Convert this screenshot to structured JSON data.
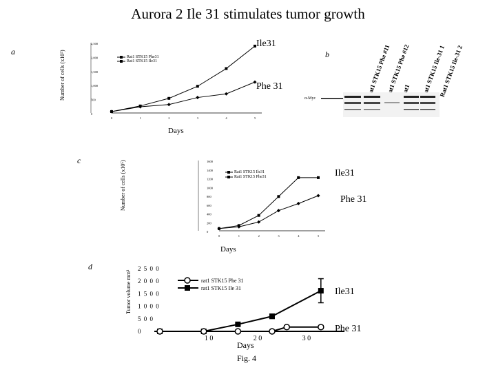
{
  "title": "Aurora 2 Ile 31 stimulates tumor growth",
  "figure_label": "Fig. 4",
  "panels": {
    "a": {
      "letter": "a",
      "ylabel": "Number of cells (x10⁵)",
      "xlabel": "Days",
      "annot_top": "Ile31",
      "annot_bottom": "Phe 31",
      "legend": [
        "Rat1 STK15 Phe31",
        "Rat1 STK15 Ile31"
      ]
    },
    "b": {
      "letter": "b",
      "probe": "α-Myc",
      "lanes": [
        "Rat1 STK15 Phe #11",
        "Rat1 STK15 Phe #12",
        "Rat1",
        "Rat1 STK15 Ile-31 1",
        "Rat1 STK15 Ile-31 2"
      ]
    },
    "c": {
      "letter": "c",
      "ylabel": "Number of cells (x10⁵)",
      "xlabel": "Days",
      "annot_top": "Ile31",
      "annot_bottom": "Phe 31",
      "legend": [
        "Rat1 STK15 Ile31",
        "Rat1 STK15 Phe31"
      ]
    },
    "d": {
      "letter": "d",
      "ylabel": "Tumor volume mm³",
      "xlabel": "Days",
      "annot_top": "Ile31",
      "annot_bottom": "Phe 31",
      "legend": [
        "rat1 STK15 Phe 31",
        "rat1 STK15 Ile 31"
      ]
    }
  },
  "chart_data": [
    {
      "id": "a",
      "type": "line",
      "title": "",
      "xlabel": "Days",
      "ylabel": "Number of cells (x10⁵)",
      "x": [
        0,
        1,
        2,
        3,
        4,
        5
      ],
      "xlim": [
        0,
        5
      ],
      "ylim": [
        0,
        2500
      ],
      "yticks": [
        0,
        500,
        1000,
        1500,
        2000,
        2500
      ],
      "ytick_labels": [
        "0",
        "500",
        "1,000",
        "1,500",
        "2,000",
        "2,500"
      ],
      "series": [
        {
          "name": "Ile31",
          "values": [
            50,
            250,
            520,
            950,
            1580,
            2380
          ],
          "marker": "square"
        },
        {
          "name": "Phe 31",
          "values": [
            50,
            220,
            300,
            550,
            680,
            1100
          ],
          "marker": "diamond"
        }
      ]
    },
    {
      "id": "c",
      "type": "line",
      "title": "",
      "xlabel": "Days",
      "ylabel": "Number of cells (x10⁵)",
      "x": [
        0,
        1,
        2,
        3,
        4,
        5
      ],
      "xlim": [
        0,
        5
      ],
      "ylim": [
        0,
        1600
      ],
      "yticks": [
        0,
        200,
        400,
        600,
        800,
        1000,
        1200,
        1400,
        1600
      ],
      "ytick_labels": [
        "0",
        "200",
        "400",
        "600",
        "800",
        "1000",
        "1200",
        "1400",
        "1600"
      ],
      "series": [
        {
          "name": "Ile31",
          "values": [
            50,
            120,
            350,
            780,
            1210,
            1210
          ],
          "marker": "square"
        },
        {
          "name": "Phe 31",
          "values": [
            50,
            90,
            200,
            460,
            620,
            800
          ],
          "marker": "diamond"
        }
      ]
    },
    {
      "id": "d",
      "type": "line",
      "title": "",
      "xlabel": "Days",
      "ylabel": "Tumor volume mm³",
      "x": [
        0,
        9,
        16,
        23,
        26,
        33
      ],
      "xlim": [
        0,
        35
      ],
      "ylim": [
        0,
        2500
      ],
      "xticks": [
        10,
        20,
        30
      ],
      "xtick_labels": [
        "1 0",
        "2 0",
        "3 0"
      ],
      "yticks": [
        0,
        500,
        1000,
        1500,
        2000,
        2500
      ],
      "ytick_labels": [
        "0",
        "5 0 0",
        "1 0 0 0",
        "1 5 0 0",
        "2 0 0 0",
        "2 5 0 0"
      ],
      "series": [
        {
          "name": "Ile31",
          "values": [
            0,
            0,
            280,
            600,
            null,
            1620
          ],
          "errors": [
            0,
            0,
            40,
            90,
            null,
            480
          ],
          "marker": "filled-square"
        },
        {
          "name": "Phe 31",
          "values": [
            0,
            0,
            0,
            0,
            170,
            170
          ],
          "errors": [
            0,
            0,
            0,
            0,
            60,
            60
          ],
          "marker": "open-circle"
        }
      ]
    }
  ]
}
